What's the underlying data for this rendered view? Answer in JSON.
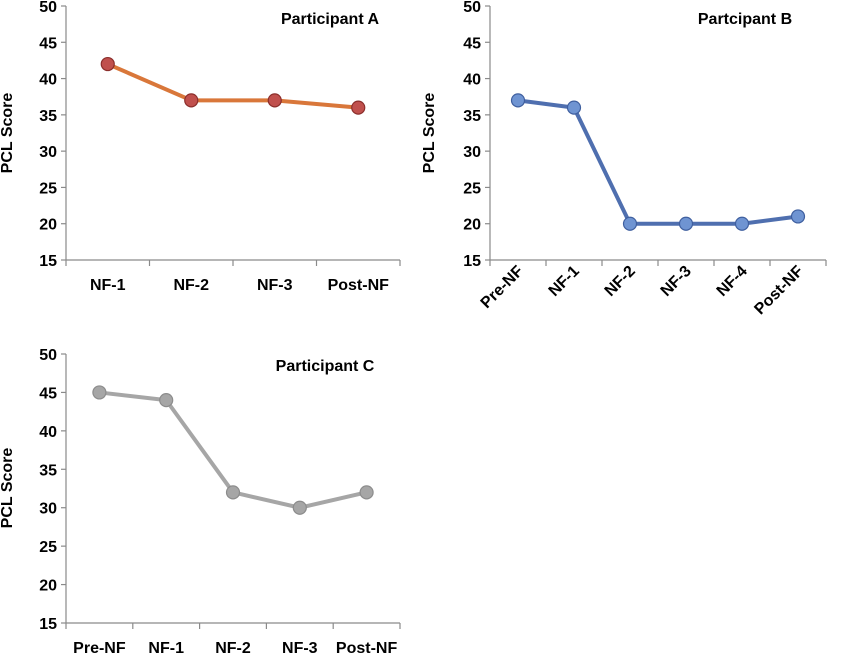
{
  "chart_data": [
    {
      "type": "line",
      "title": "Participant A",
      "ylabel": "PCL Score",
      "xlabel": "",
      "ylim": [
        15,
        50
      ],
      "yticks": [
        15,
        20,
        25,
        30,
        35,
        40,
        45,
        50
      ],
      "categories": [
        "NF-1",
        "NF-2",
        "NF-3",
        "Post-NF"
      ],
      "values": [
        42,
        37,
        37,
        36
      ],
      "line_color": "#D9773A",
      "marker_color": "#C0504D",
      "marker_stroke": "#8B2E2B",
      "rotate_labels": false
    },
    {
      "type": "line",
      "title": "Partcipant B",
      "ylabel": "PCL Score",
      "xlabel": "",
      "ylim": [
        15,
        50
      ],
      "yticks": [
        15,
        20,
        25,
        30,
        35,
        40,
        45,
        50
      ],
      "categories": [
        "Pre-NF",
        "NF-1",
        "NF-2",
        "NF-3",
        "NF-4",
        "Post-NF"
      ],
      "values": [
        37,
        36,
        20,
        20,
        20,
        21
      ],
      "line_color": "#4F6FAF",
      "marker_color": "#6F94D2",
      "marker_stroke": "#3F5F9F",
      "rotate_labels": true
    },
    {
      "type": "line",
      "title": "Participant C",
      "ylabel": "PCL Score",
      "xlabel": "",
      "ylim": [
        15,
        50
      ],
      "yticks": [
        15,
        20,
        25,
        30,
        35,
        40,
        45,
        50
      ],
      "categories": [
        "Pre-NF",
        "NF-1",
        "NF-2",
        "NF-3",
        "Post-NF"
      ],
      "values": [
        45,
        44,
        32,
        30,
        32
      ],
      "line_color": "#A6A6A6",
      "marker_color": "#A6A6A6",
      "marker_stroke": "#8C8C8C",
      "rotate_labels": false
    }
  ]
}
